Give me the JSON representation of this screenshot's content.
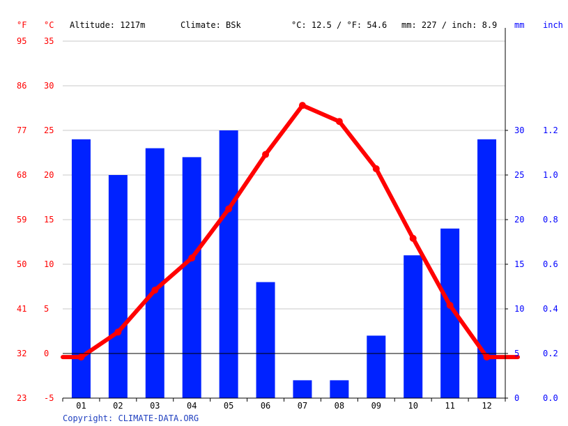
{
  "header": {
    "f_unit": "°F",
    "c_unit": "°C",
    "altitude": "Altitude: 1217m",
    "climate": "Climate: BSk",
    "temp_avg": "°C: 12.5 / °F: 54.6",
    "precip_total": "mm: 227 / inch: 8.9",
    "mm_unit": "mm",
    "inch_unit": "inch"
  },
  "footer": {
    "copyright": "Copyright: CLIMATE-DATA.ORG"
  },
  "colors": {
    "temperature": "#ff0000",
    "precipitation": "#0022ff",
    "grid": "#c8c8c8",
    "axis": "#000000"
  },
  "chart_data": {
    "type": "bar",
    "categories": [
      "01",
      "02",
      "03",
      "04",
      "05",
      "06",
      "07",
      "08",
      "09",
      "10",
      "11",
      "12"
    ],
    "series": [
      {
        "kind": "bar",
        "axis": "mm",
        "values": [
          29,
          25,
          28,
          27,
          30,
          13,
          2,
          2,
          7,
          16,
          19,
          29
        ]
      },
      {
        "kind": "line",
        "axis": "celsius",
        "values": [
          -0.4,
          2.4,
          7.1,
          10.7,
          16.2,
          22.3,
          27.8,
          26.0,
          20.7,
          12.9,
          5.4,
          -0.4
        ]
      }
    ],
    "axes": {
      "celsius": {
        "min": -5,
        "max": 35,
        "ticks": [
          "-5",
          "0",
          "5",
          "10",
          "15",
          "20",
          "25",
          "30",
          "35"
        ]
      },
      "fahrenheit": {
        "ticks": [
          "23",
          "32",
          "41",
          "50",
          "59",
          "68",
          "77",
          "86",
          "95"
        ]
      },
      "mm": {
        "min": 0,
        "max": 30,
        "ticks": [
          "0",
          "5",
          "10",
          "15",
          "20",
          "25",
          "30"
        ]
      },
      "inch": {
        "ticks": [
          "0.0",
          "0.2",
          "0.4",
          "0.6",
          "0.8",
          "1.0",
          "1.2"
        ]
      }
    },
    "grid": true,
    "legend": "none"
  }
}
